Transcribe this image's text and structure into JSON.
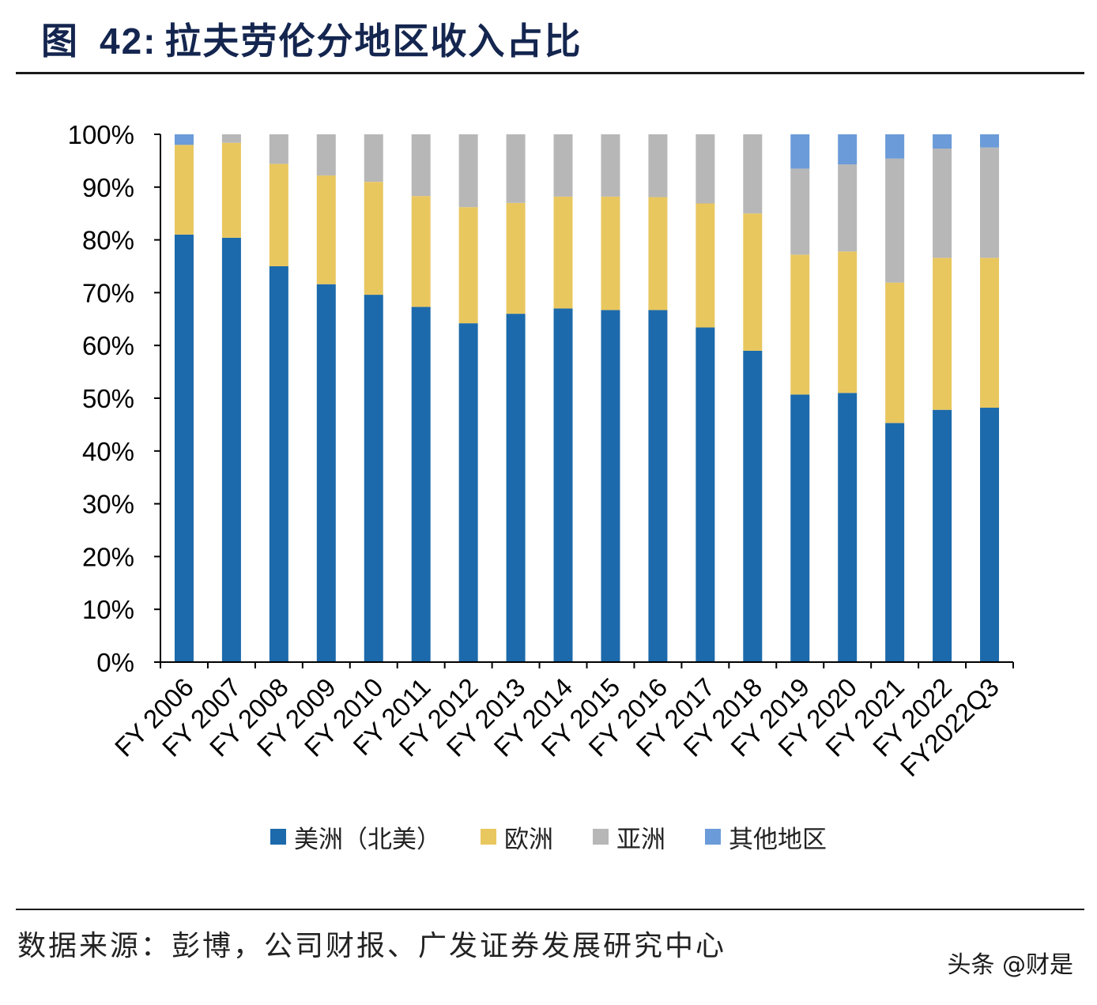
{
  "title": {
    "label": "图",
    "number": "42:",
    "text": "拉夫劳伦分地区收入占比"
  },
  "chart_data": {
    "type": "bar",
    "stacked": true,
    "title": "拉夫劳伦分地区收入占比",
    "categories": [
      "FY 2006",
      "FY 2007",
      "FY 2008",
      "FY 2009",
      "FY 2010",
      "FY 2011",
      "FY 2012",
      "FY 2013",
      "FY 2014",
      "FY 2015",
      "FY 2016",
      "FY 2017",
      "FY 2018",
      "FY 2019",
      "FY 2020",
      "FY 2021",
      "FY 2022",
      "FY2022Q3"
    ],
    "series": [
      {
        "name": "美洲（北美）",
        "color": "#1c6aab",
        "values": [
          81.0,
          80.4,
          75.0,
          71.6,
          69.6,
          67.3,
          64.2,
          66.0,
          67.0,
          66.7,
          66.7,
          63.4,
          59.0,
          50.7,
          51.0,
          45.3,
          47.8,
          48.2
        ]
      },
      {
        "name": "欧洲",
        "color": "#e9c75f",
        "values": [
          17.0,
          18.0,
          19.4,
          20.6,
          21.4,
          21.0,
          22.0,
          21.0,
          21.2,
          21.5,
          21.4,
          23.5,
          26.0,
          26.5,
          26.8,
          26.6,
          28.8,
          28.4
        ]
      },
      {
        "name": "亚洲",
        "color": "#b7b7b7",
        "values": [
          0.0,
          1.6,
          5.6,
          7.8,
          9.0,
          11.7,
          13.8,
          13.0,
          11.8,
          11.8,
          11.9,
          13.1,
          15.0,
          16.3,
          16.5,
          23.5,
          20.7,
          20.9
        ]
      },
      {
        "name": "其他地区",
        "color": "#6b9bd8",
        "values": [
          2.0,
          0.0,
          0.0,
          0.0,
          0.0,
          0.0,
          0.0,
          0.0,
          0.0,
          0.0,
          0.0,
          0.0,
          0.0,
          6.5,
          5.7,
          4.6,
          2.7,
          2.5
        ]
      }
    ],
    "ylim": [
      0,
      100
    ],
    "yticks": [
      "0%",
      "10%",
      "20%",
      "30%",
      "40%",
      "50%",
      "60%",
      "70%",
      "80%",
      "90%",
      "100%"
    ],
    "xlabel": "",
    "ylabel": "",
    "legend_position": "bottom",
    "grid": false
  },
  "legend": [
    "美洲（北美）",
    "欧洲",
    "亚洲",
    "其他地区"
  ],
  "source": "数据来源：彭博，公司财报、广发证券发展研究中心",
  "watermark": "头条 @财是"
}
